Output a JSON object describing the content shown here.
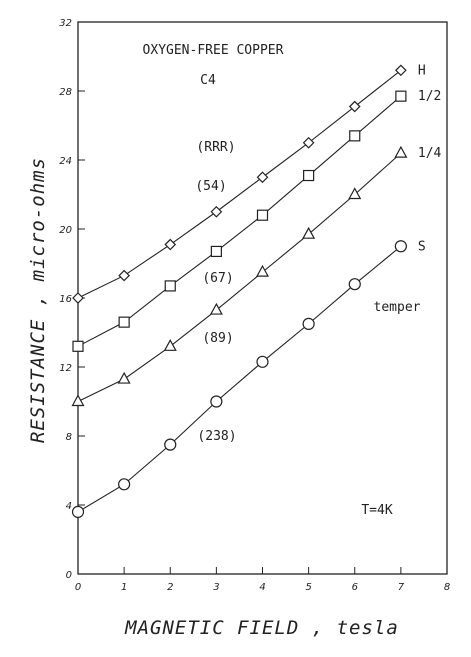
{
  "chart_data": {
    "type": "line",
    "title": "OXYGEN-FREE COPPER",
    "subtitle": "C4",
    "xlabel": "MAGNETIC FIELD , tesla",
    "ylabel": "RESISTANCE , micro-ohms",
    "xlim": [
      0,
      8
    ],
    "ylim": [
      0,
      32
    ],
    "x_ticks": [
      "0",
      "1",
      "2",
      "3",
      "4",
      "5",
      "6",
      "7",
      "8"
    ],
    "y_ticks": [
      "0",
      "4",
      "8",
      "12",
      "16",
      "20",
      "24",
      "28",
      "32"
    ],
    "x": [
      0,
      1,
      2,
      3,
      4,
      5,
      6,
      7
    ],
    "series": [
      {
        "name": "H",
        "marker": "diamond",
        "values": [
          16.0,
          17.3,
          19.1,
          21.0,
          23.0,
          25.0,
          27.1,
          29.2
        ]
      },
      {
        "name": "1/2",
        "marker": "square",
        "values": [
          13.2,
          14.6,
          16.7,
          18.7,
          20.8,
          23.1,
          25.4,
          27.7
        ]
      },
      {
        "name": "1/4",
        "marker": "triangle",
        "values": [
          10.0,
          11.3,
          13.2,
          15.3,
          17.5,
          19.7,
          22.0,
          24.4
        ]
      },
      {
        "name": "S",
        "marker": "circle",
        "values": [
          3.6,
          5.2,
          7.5,
          10.0,
          12.3,
          14.5,
          16.8,
          19.0
        ]
      }
    ],
    "legend_title": "temper",
    "rrr_heading": "(RRR)",
    "rrr_labels": [
      "(54)",
      "(67)",
      "(89)",
      "(238)"
    ],
    "condition": "T=4K",
    "grid": false
  }
}
